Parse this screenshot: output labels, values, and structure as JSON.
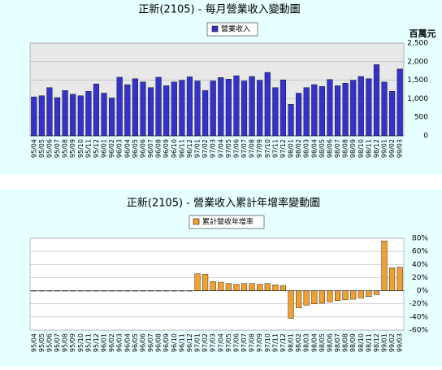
{
  "chart_data": [
    {
      "type": "bar",
      "title": "正新(2105) - 每月營業收入變動圖",
      "y_label": "百萬元",
      "color": "#3333cc",
      "categories": [
        "95/04",
        "95/05",
        "95/06",
        "95/07",
        "95/08",
        "95/09",
        "95/10",
        "95/11",
        "95/12",
        "96/01",
        "96/02",
        "96/03",
        "96/04",
        "96/05",
        "96/06",
        "96/07",
        "96/08",
        "96/09",
        "96/10",
        "96/11",
        "96/12",
        "97/01",
        "97/02",
        "97/03",
        "97/04",
        "97/05",
        "97/06",
        "97/07",
        "97/08",
        "97/09",
        "97/10",
        "97/11",
        "97/12",
        "98/01",
        "98/02",
        "98/03",
        "98/04",
        "98/05",
        "98/06",
        "98/07",
        "98/08",
        "98/09",
        "98/10",
        "98/11",
        "98/12",
        "99/01",
        "99/02",
        "99/03"
      ],
      "series": [
        {
          "name": "營業收入",
          "color": "#3333cc",
          "values": [
            1050,
            1080,
            1300,
            1030,
            1220,
            1120,
            1080,
            1200,
            1400,
            1150,
            1020,
            1580,
            1380,
            1540,
            1450,
            1300,
            1580,
            1350,
            1450,
            1500,
            1590,
            1480,
            1220,
            1480,
            1570,
            1530,
            1620,
            1480,
            1600,
            1500,
            1710,
            1300,
            1510,
            850,
            1150,
            1300,
            1380,
            1330,
            1520,
            1350,
            1420,
            1500,
            1600,
            1540,
            1920,
            1450,
            1200,
            1800
          ]
        }
      ],
      "ylim": [
        0,
        2500
      ],
      "yticks": [
        0,
        500,
        {
          "value": 1000,
          "label": "1,000"
        },
        {
          "value": 1500,
          "label": "1,500"
        },
        {
          "value": 2000,
          "label": "2,000"
        },
        {
          "value": 2500,
          "label": "2,500"
        }
      ],
      "grid": true
    },
    {
      "type": "bar",
      "title": "正新(2105) -  營業收入累計年增率變動圖",
      "categories": [
        "95/04",
        "95/05",
        "95/06",
        "95/07",
        "95/08",
        "95/09",
        "95/10",
        "95/11",
        "95/12",
        "96/01",
        "96/02",
        "96/03",
        "96/04",
        "96/05",
        "96/06",
        "96/07",
        "96/08",
        "96/09",
        "96/10",
        "96/11",
        "96/12",
        "97/01",
        "97/02",
        "97/03",
        "97/04",
        "97/05",
        "97/06",
        "97/07",
        "97/08",
        "97/09",
        "97/10",
        "97/11",
        "97/12",
        "98/01",
        "98/02",
        "98/03",
        "98/04",
        "98/05",
        "98/06",
        "98/07",
        "98/08",
        "98/09",
        "98/10",
        "98/11",
        "98/12",
        "99/01",
        "99/02",
        "99/03"
      ],
      "series": [
        {
          "name": "累計營收年增率",
          "color": "#f0a030",
          "values": [
            0,
            0,
            0,
            0,
            0,
            0,
            0,
            0,
            0,
            0,
            0,
            0,
            0,
            0,
            0,
            0,
            0,
            0,
            0,
            0,
            0,
            26,
            25,
            14,
            13,
            11,
            10,
            11,
            11,
            10,
            11,
            9,
            8,
            -42,
            -26,
            -22,
            -20,
            -19,
            -17,
            -15,
            -14,
            -13,
            -11,
            -9,
            -6,
            76,
            35,
            36
          ]
        }
      ],
      "ylim": [
        -60,
        80
      ],
      "yticks": [
        {
          "value": -60,
          "label": "-60%"
        },
        {
          "value": -40,
          "label": "-40%"
        },
        {
          "value": -20,
          "label": "-20%"
        },
        {
          "value": 0,
          "label": "0%"
        },
        {
          "value": 20,
          "label": "20%"
        },
        {
          "value": 40,
          "label": "40%"
        },
        {
          "value": 60,
          "label": "60%"
        },
        {
          "value": 80,
          "label": "80%"
        }
      ],
      "grid": true
    }
  ]
}
